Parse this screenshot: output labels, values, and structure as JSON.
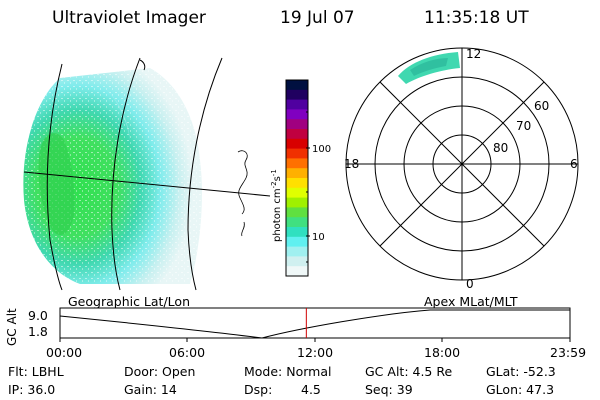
{
  "header": {
    "instrument": "Ultraviolet Imager",
    "date": "19 Jul 07",
    "time": "11:35:18 UT"
  },
  "colorbar": {
    "unit_label": "photon cm",
    "unit_exp1": "-2",
    "unit_mid": "s",
    "unit_exp2": "-1",
    "ticks": [
      "100",
      "10"
    ],
    "colors": [
      "#001040",
      "#200060",
      "#5000a0",
      "#8000c0",
      "#a00080",
      "#c00040",
      "#d80000",
      "#f03000",
      "#ff7000",
      "#ffb000",
      "#ffe000",
      "#e0ff00",
      "#a0f000",
      "#60e040",
      "#40e080",
      "#30e0c0",
      "#60f0f0",
      "#a0f0f0",
      "#d0f0f0",
      "#f0f8f8"
    ]
  },
  "polar": {
    "mlt_labels": {
      "top": "12",
      "left": "18",
      "right": "6",
      "bottom": "0"
    },
    "lat_labels": [
      "60",
      "70",
      "80"
    ]
  },
  "timeline": {
    "ylabel": "GC Alt",
    "ymax": "9.0",
    "ymin": "1.8",
    "left_caption": "Geographic Lat/Lon",
    "right_caption": "Apex  MLat/MLT",
    "xticks": [
      "00:00",
      "06:00",
      "12:00",
      "18:00",
      "23:59"
    ],
    "current_time_fraction": 0.483
  },
  "info": {
    "row1": {
      "filter": "Flt: LBHL",
      "door": "Door: Open",
      "mode": "Mode: Normal",
      "gcalt": "GC Alt: 4.5 Re",
      "glat": "GLat: -52.3"
    },
    "row2": {
      "ip": "IP: 36.0",
      "gain": "Gain: 14",
      "dsp_label": "Dsp:",
      "dsp_value": "4.5",
      "seq": "Seq: 39",
      "glon": "GLon:  47.3"
    }
  }
}
